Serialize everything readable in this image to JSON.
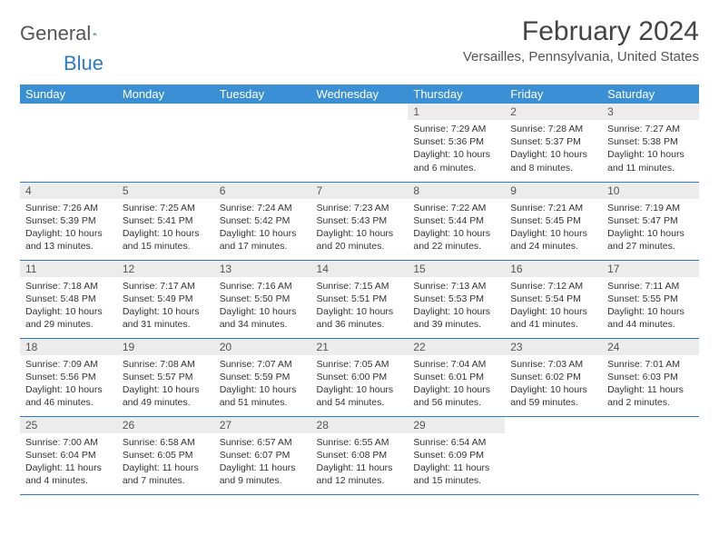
{
  "header": {
    "logo_general": "General",
    "logo_blue": "Blue",
    "month_title": "February 2024",
    "location": "Versailles, Pennsylvania, United States"
  },
  "colors": {
    "header_bg": "#3b8fd4",
    "header_text": "#ffffff",
    "row_divider": "#2d7bc4",
    "daynum_bg": "#ececec",
    "page_bg": "#ffffff",
    "logo_blue": "#2d7bc4",
    "text": "#333333"
  },
  "weekdays": [
    "Sunday",
    "Monday",
    "Tuesday",
    "Wednesday",
    "Thursday",
    "Friday",
    "Saturday"
  ],
  "first_weekday_index": 4,
  "days": [
    {
      "n": "1",
      "sunrise": "7:29 AM",
      "sunset": "5:36 PM",
      "daylight": "10 hours and 6 minutes."
    },
    {
      "n": "2",
      "sunrise": "7:28 AM",
      "sunset": "5:37 PM",
      "daylight": "10 hours and 8 minutes."
    },
    {
      "n": "3",
      "sunrise": "7:27 AM",
      "sunset": "5:38 PM",
      "daylight": "10 hours and 11 minutes."
    },
    {
      "n": "4",
      "sunrise": "7:26 AM",
      "sunset": "5:39 PM",
      "daylight": "10 hours and 13 minutes."
    },
    {
      "n": "5",
      "sunrise": "7:25 AM",
      "sunset": "5:41 PM",
      "daylight": "10 hours and 15 minutes."
    },
    {
      "n": "6",
      "sunrise": "7:24 AM",
      "sunset": "5:42 PM",
      "daylight": "10 hours and 17 minutes."
    },
    {
      "n": "7",
      "sunrise": "7:23 AM",
      "sunset": "5:43 PM",
      "daylight": "10 hours and 20 minutes."
    },
    {
      "n": "8",
      "sunrise": "7:22 AM",
      "sunset": "5:44 PM",
      "daylight": "10 hours and 22 minutes."
    },
    {
      "n": "9",
      "sunrise": "7:21 AM",
      "sunset": "5:45 PM",
      "daylight": "10 hours and 24 minutes."
    },
    {
      "n": "10",
      "sunrise": "7:19 AM",
      "sunset": "5:47 PM",
      "daylight": "10 hours and 27 minutes."
    },
    {
      "n": "11",
      "sunrise": "7:18 AM",
      "sunset": "5:48 PM",
      "daylight": "10 hours and 29 minutes."
    },
    {
      "n": "12",
      "sunrise": "7:17 AM",
      "sunset": "5:49 PM",
      "daylight": "10 hours and 31 minutes."
    },
    {
      "n": "13",
      "sunrise": "7:16 AM",
      "sunset": "5:50 PM",
      "daylight": "10 hours and 34 minutes."
    },
    {
      "n": "14",
      "sunrise": "7:15 AM",
      "sunset": "5:51 PM",
      "daylight": "10 hours and 36 minutes."
    },
    {
      "n": "15",
      "sunrise": "7:13 AM",
      "sunset": "5:53 PM",
      "daylight": "10 hours and 39 minutes."
    },
    {
      "n": "16",
      "sunrise": "7:12 AM",
      "sunset": "5:54 PM",
      "daylight": "10 hours and 41 minutes."
    },
    {
      "n": "17",
      "sunrise": "7:11 AM",
      "sunset": "5:55 PM",
      "daylight": "10 hours and 44 minutes."
    },
    {
      "n": "18",
      "sunrise": "7:09 AM",
      "sunset": "5:56 PM",
      "daylight": "10 hours and 46 minutes."
    },
    {
      "n": "19",
      "sunrise": "7:08 AM",
      "sunset": "5:57 PM",
      "daylight": "10 hours and 49 minutes."
    },
    {
      "n": "20",
      "sunrise": "7:07 AM",
      "sunset": "5:59 PM",
      "daylight": "10 hours and 51 minutes."
    },
    {
      "n": "21",
      "sunrise": "7:05 AM",
      "sunset": "6:00 PM",
      "daylight": "10 hours and 54 minutes."
    },
    {
      "n": "22",
      "sunrise": "7:04 AM",
      "sunset": "6:01 PM",
      "daylight": "10 hours and 56 minutes."
    },
    {
      "n": "23",
      "sunrise": "7:03 AM",
      "sunset": "6:02 PM",
      "daylight": "10 hours and 59 minutes."
    },
    {
      "n": "24",
      "sunrise": "7:01 AM",
      "sunset": "6:03 PM",
      "daylight": "11 hours and 2 minutes."
    },
    {
      "n": "25",
      "sunrise": "7:00 AM",
      "sunset": "6:04 PM",
      "daylight": "11 hours and 4 minutes."
    },
    {
      "n": "26",
      "sunrise": "6:58 AM",
      "sunset": "6:05 PM",
      "daylight": "11 hours and 7 minutes."
    },
    {
      "n": "27",
      "sunrise": "6:57 AM",
      "sunset": "6:07 PM",
      "daylight": "11 hours and 9 minutes."
    },
    {
      "n": "28",
      "sunrise": "6:55 AM",
      "sunset": "6:08 PM",
      "daylight": "11 hours and 12 minutes."
    },
    {
      "n": "29",
      "sunrise": "6:54 AM",
      "sunset": "6:09 PM",
      "daylight": "11 hours and 15 minutes."
    }
  ],
  "labels": {
    "sunrise": "Sunrise:",
    "sunset": "Sunset:",
    "daylight": "Daylight:"
  }
}
